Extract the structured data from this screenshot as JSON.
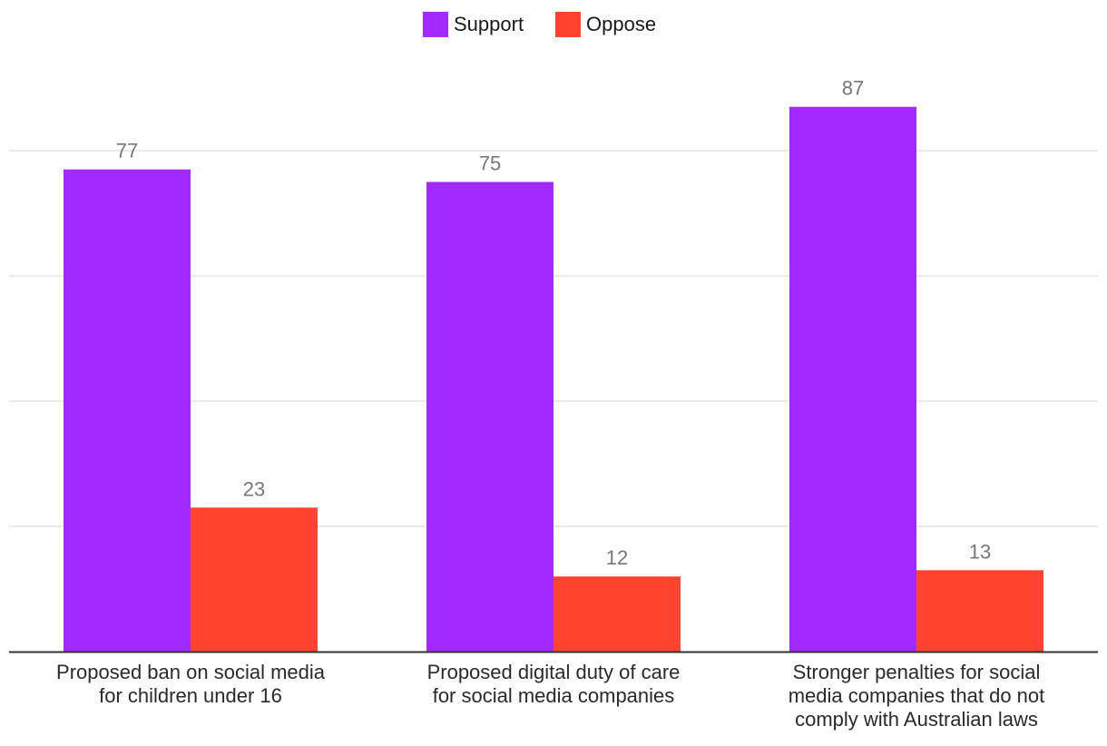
{
  "chart_data": {
    "type": "bar",
    "title": "",
    "xlabel": "",
    "ylabel": "",
    "ylim": [
      0,
      100
    ],
    "grid": true,
    "legend_position": "top-center",
    "categories": [
      [
        "Proposed ban on social media",
        "for children under 16"
      ],
      [
        "Proposed digital duty of care",
        "for social media companies"
      ],
      [
        "Stronger penalties for social",
        "media companies that do not",
        "comply with Australian laws"
      ]
    ],
    "series": [
      {
        "name": "Support",
        "color": "#a229ff",
        "values": [
          77,
          75,
          87
        ]
      },
      {
        "name": "Oppose",
        "color": "#ff432e",
        "values": [
          23,
          12,
          13
        ]
      }
    ]
  }
}
